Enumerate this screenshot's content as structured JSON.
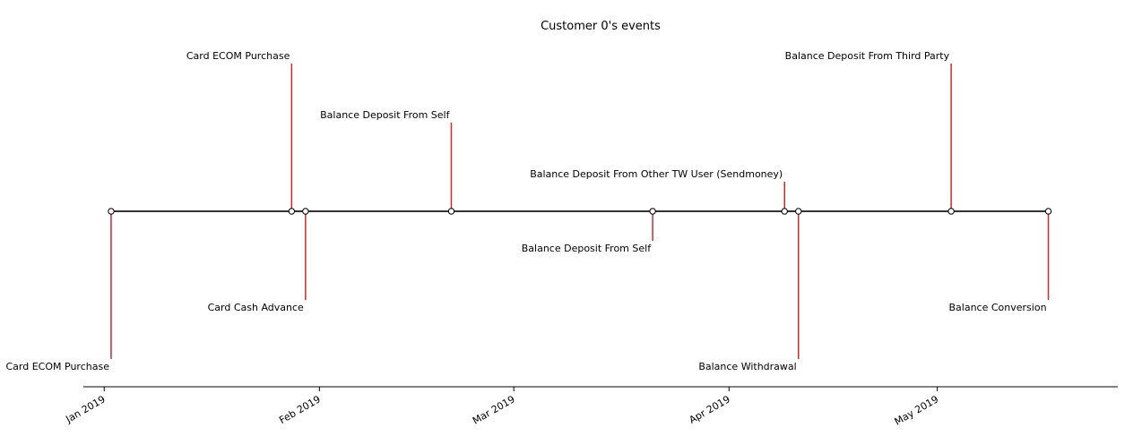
{
  "chart_data": {
    "type": "timeline",
    "title": "Customer 0's events",
    "x_axis": {
      "type": "date",
      "range": [
        "2018-12-29",
        "2019-05-27"
      ],
      "tick_labels": [
        "Jan 2019",
        "Feb 2019",
        "Mar 2019",
        "Apr 2019",
        "May 2019"
      ],
      "ticks": [
        "2019-01-01",
        "2019-02-01",
        "2019-03-01",
        "2019-04-01",
        "2019-05-01"
      ]
    },
    "stem_color": "#d62728",
    "events": [
      {
        "date": "2019-01-02",
        "label": "Card ECOM Purchase",
        "level": -5
      },
      {
        "date": "2019-01-28",
        "label": "Card ECOM Purchase",
        "level": 5
      },
      {
        "date": "2019-01-30",
        "label": "Card Cash Advance",
        "level": -3
      },
      {
        "date": "2019-02-20",
        "label": "Balance Deposit From Self",
        "level": 3
      },
      {
        "date": "2019-03-21",
        "label": "Balance Deposit From Self",
        "level": -1
      },
      {
        "date": "2019-04-09",
        "label": "Balance Deposit From Other TW User (Sendmoney)",
        "level": 1
      },
      {
        "date": "2019-04-11",
        "label": "Balance Withdrawal",
        "level": -5
      },
      {
        "date": "2019-05-03",
        "label": "Balance Deposit From Third Party",
        "level": 5
      },
      {
        "date": "2019-05-17",
        "label": "Balance Conversion",
        "level": -3
      }
    ]
  }
}
